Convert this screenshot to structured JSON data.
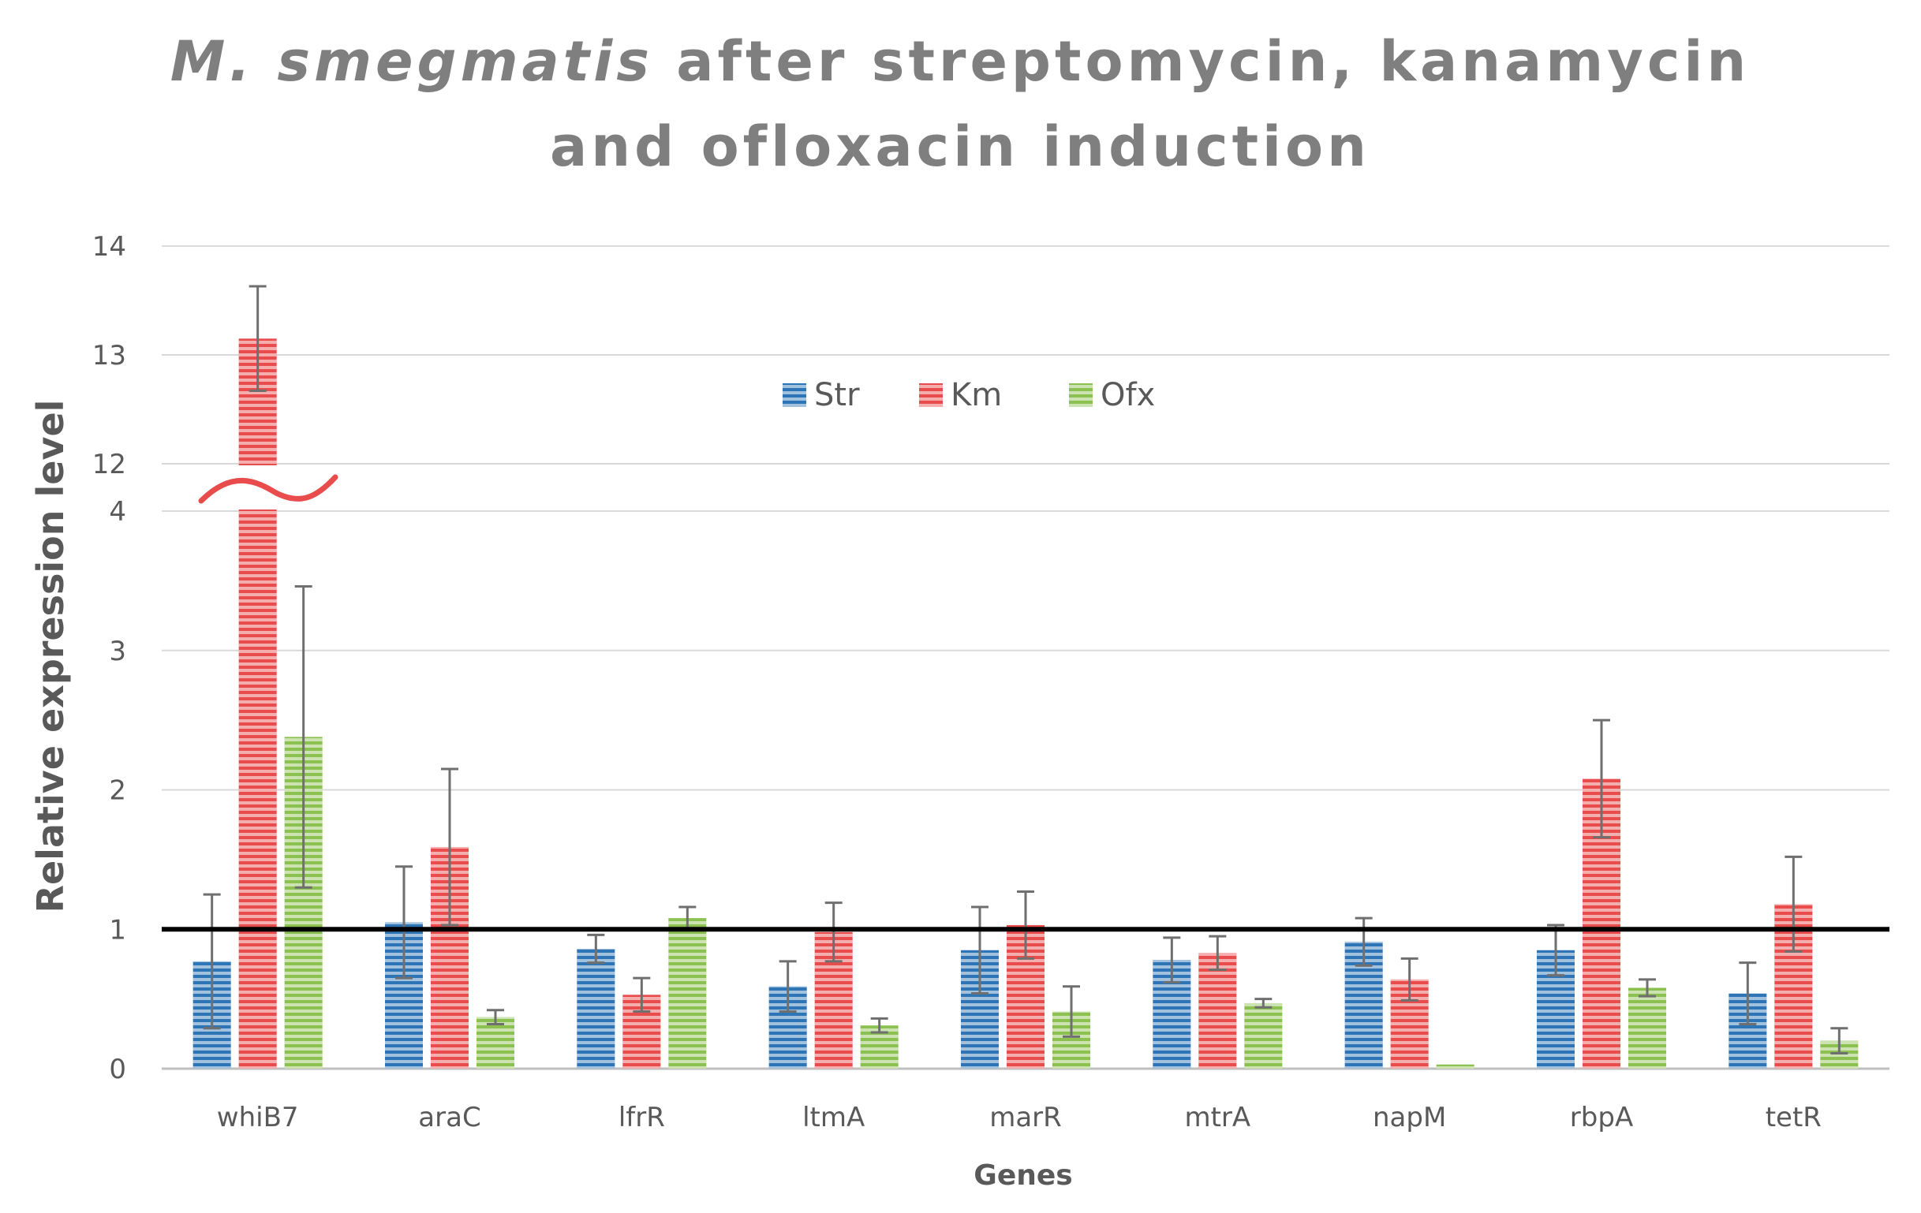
{
  "chart_data": {
    "type": "bar",
    "title_italic": "M. smegmatis",
    "title_rest_line1": " after streptomycin, kanamycin",
    "title_line2": "and ofloxacin induction",
    "xlabel": "Genes",
    "ylabel": "Relative expression level",
    "axis_break": {
      "lower_max": 4,
      "upper_min": 12,
      "upper_max": 14
    },
    "ylim": [
      0,
      14
    ],
    "yticks": [
      "0",
      "1",
      "2",
      "3",
      "4",
      "12",
      "13",
      "14"
    ],
    "reference_line": 1,
    "categories": [
      "whiB7",
      "araC",
      "lfrR",
      "ltmA",
      "marR",
      "mtrA",
      "napM",
      "rbpA",
      "tetR"
    ],
    "series": [
      {
        "name": "Str",
        "color": "#2e75b6",
        "values": [
          0.77,
          1.05,
          0.86,
          0.59,
          0.85,
          0.78,
          0.91,
          0.85,
          0.54
        ],
        "errors": [
          0.48,
          0.4,
          0.1,
          0.18,
          0.31,
          0.16,
          0.17,
          0.18,
          0.22
        ]
      },
      {
        "name": "Km",
        "color": "#e84c4c",
        "values": [
          13.15,
          1.59,
          0.53,
          0.98,
          1.03,
          0.83,
          0.64,
          2.08,
          1.18
        ],
        "errors": [
          0.48,
          0.56,
          0.12,
          0.21,
          0.24,
          0.12,
          0.15,
          0.42,
          0.34
        ]
      },
      {
        "name": "Ofx",
        "color": "#8cc152",
        "values": [
          2.38,
          0.37,
          1.08,
          0.31,
          0.41,
          0.47,
          0.03,
          0.58,
          0.2
        ],
        "errors": [
          1.08,
          0.05,
          0.08,
          0.05,
          0.18,
          0.03,
          0.0,
          0.06,
          0.09
        ]
      }
    ]
  }
}
